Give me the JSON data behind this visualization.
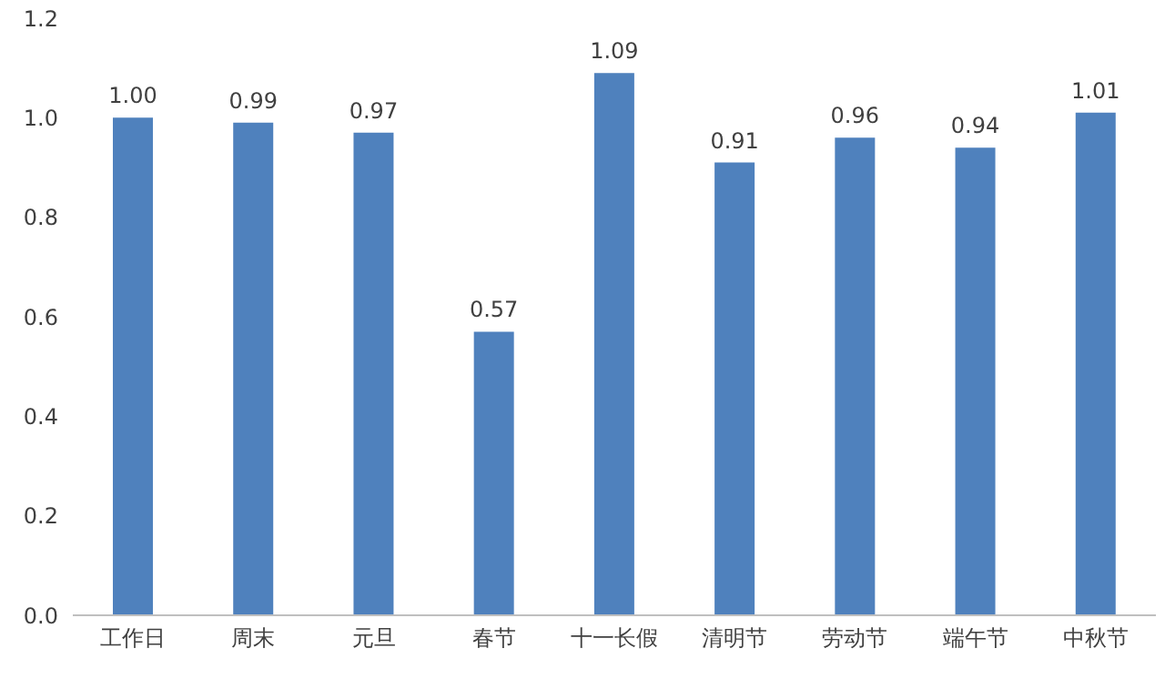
{
  "chart_data": {
    "type": "bar",
    "categories": [
      "工作日",
      "周末",
      "元旦",
      "春节",
      "十一长假",
      "清明节",
      "劳动节",
      "端午节",
      "中秋节"
    ],
    "values": [
      1.0,
      0.99,
      0.97,
      0.57,
      1.09,
      0.91,
      0.96,
      0.94,
      1.01
    ],
    "value_labels": [
      "1.00",
      "0.99",
      "0.97",
      "0.57",
      "1.09",
      "0.91",
      "0.96",
      "0.94",
      "1.01"
    ],
    "color": "#4f81bd",
    "ylim": [
      0,
      1.2
    ],
    "yticks": [
      {
        "value": 0,
        "label": "0.0"
      },
      {
        "value": 0.2,
        "label": "0.2"
      },
      {
        "value": 0.4,
        "label": "0.4"
      },
      {
        "value": 0.6,
        "label": "0.6"
      },
      {
        "value": 0.8,
        "label": "0.8"
      },
      {
        "value": 1.0,
        "label": "1.0"
      },
      {
        "value": 1.2,
        "label": "1.2"
      }
    ],
    "grid": false
  }
}
